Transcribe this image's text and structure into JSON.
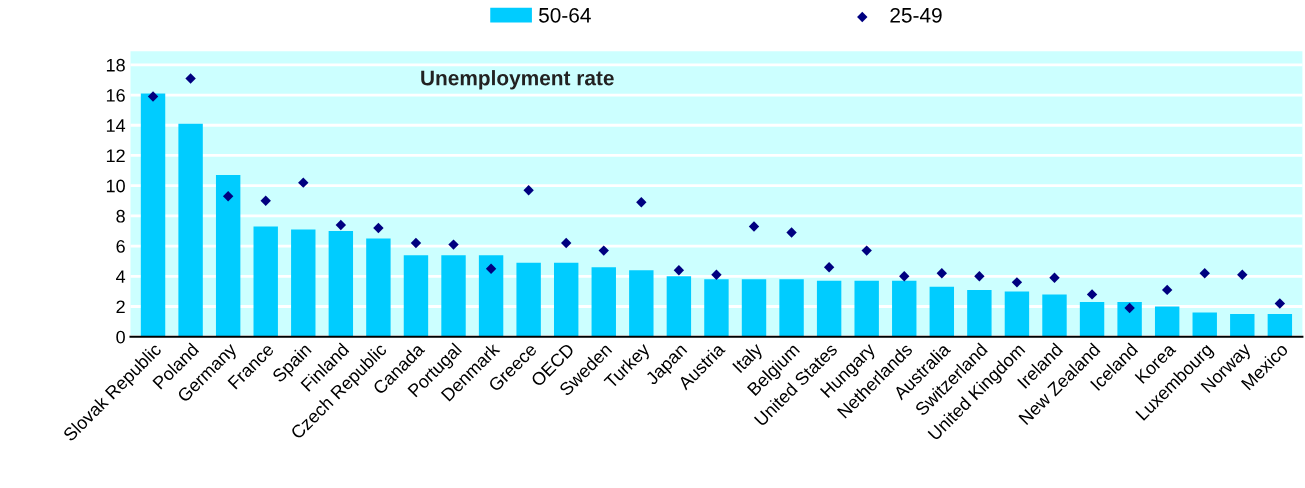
{
  "chart_data": {
    "type": "bar",
    "title": "Unemployment rate",
    "categories": [
      "Slovak Republic",
      "Poland",
      "Germany",
      "France",
      "Spain",
      "Finland",
      "Czech Republic",
      "Canada",
      "Portugal",
      "Denmark",
      "Greece",
      "OECD",
      "Sweden",
      "Turkey",
      "Japan",
      "Austria",
      "Italy",
      "Belgium",
      "United States",
      "Hungary",
      "Netherlands",
      "Australia",
      "Switzerland",
      "United Kingdom",
      "Ireland",
      "New Zealand",
      "Iceland",
      "Korea",
      "Luxembourg",
      "Norway",
      "Mexico"
    ],
    "series": [
      {
        "name": "50-64",
        "color": "#00ccff",
        "values": [
          16.1,
          14.1,
          10.7,
          7.3,
          7.1,
          7.0,
          6.5,
          5.4,
          5.4,
          5.4,
          4.9,
          4.9,
          4.6,
          4.4,
          4.0,
          3.8,
          3.8,
          3.8,
          3.7,
          3.7,
          3.7,
          3.3,
          3.1,
          3.0,
          2.8,
          2.3,
          2.3,
          2.0,
          1.6,
          1.5,
          1.5
        ]
      },
      {
        "name": "25-49",
        "type": "scatter",
        "color": "#000080",
        "marker": "diamond",
        "values": [
          15.9,
          17.1,
          9.3,
          9.0,
          10.2,
          7.4,
          7.2,
          6.2,
          6.1,
          4.5,
          9.7,
          6.2,
          5.7,
          8.9,
          4.4,
          4.1,
          7.3,
          6.9,
          4.6,
          5.7,
          4.0,
          4.2,
          4.0,
          3.6,
          3.9,
          2.8,
          1.9,
          3.1,
          4.2,
          4.1,
          2.2
        ]
      }
    ],
    "ylim": [
      0,
      18.9
    ],
    "yticks": [
      0,
      2,
      4,
      6,
      8,
      10,
      12,
      14,
      16,
      18
    ],
    "grid": "y",
    "legend": "top"
  }
}
